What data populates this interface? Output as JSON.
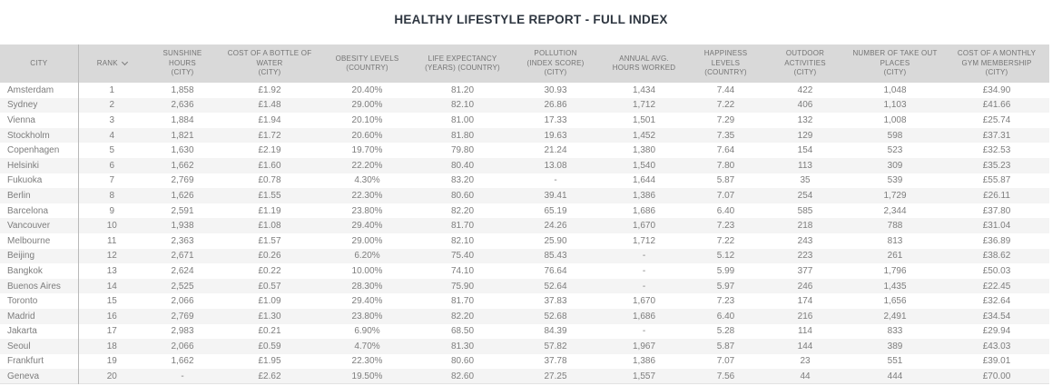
{
  "title": "HEALTHY LIFESTYLE REPORT - FULL INDEX",
  "colors": {
    "header_bg": "#d9d9d9",
    "header_text": "#747474",
    "body_text": "#7d7d7d",
    "stripe": "#f4f4f4",
    "divider": "#b9b9b9",
    "title_text": "#2e3640"
  },
  "table": {
    "columns": [
      {
        "label": "CITY"
      },
      {
        "label": "RANK",
        "sort_icon": "chevron-down"
      },
      {
        "label": "SUNSHINE\nHOURS\n(CITY)"
      },
      {
        "label": "COST OF A BOTTLE OF\nWATER\n(CITY)"
      },
      {
        "label": "OBESITY LEVELS\n(COUNTRY)"
      },
      {
        "label": "LIFE EXPECTANCY\n(YEARS) (COUNTRY)"
      },
      {
        "label": "POLLUTION\n(INDEX SCORE)\n(CITY)"
      },
      {
        "label": "ANNUAL AVG.\nHOURS WORKED"
      },
      {
        "label": "HAPPINESS\nLEVELS\n(COUNTRY)"
      },
      {
        "label": "OUTDOOR\nACTIVITIES\n(CITY)"
      },
      {
        "label": "NUMBER OF TAKE OUT\nPLACES\n(CITY)"
      },
      {
        "label": "COST OF A MONTHLY\nGYM MEMBERSHIP\n(CITY)"
      }
    ],
    "rows": [
      [
        "Amsterdam",
        "1",
        "1,858",
        "£1.92",
        "20.40%",
        "81.20",
        "30.93",
        "1,434",
        "7.44",
        "422",
        "1,048",
        "£34.90"
      ],
      [
        "Sydney",
        "2",
        "2,636",
        "£1.48",
        "29.00%",
        "82.10",
        "26.86",
        "1,712",
        "7.22",
        "406",
        "1,103",
        "£41.66"
      ],
      [
        "Vienna",
        "3",
        "1,884",
        "£1.94",
        "20.10%",
        "81.00",
        "17.33",
        "1,501",
        "7.29",
        "132",
        "1,008",
        "£25.74"
      ],
      [
        "Stockholm",
        "4",
        "1,821",
        "£1.72",
        "20.60%",
        "81.80",
        "19.63",
        "1,452",
        "7.35",
        "129",
        "598",
        "£37.31"
      ],
      [
        "Copenhagen",
        "5",
        "1,630",
        "£2.19",
        "19.70%",
        "79.80",
        "21.24",
        "1,380",
        "7.64",
        "154",
        "523",
        "£32.53"
      ],
      [
        "Helsinki",
        "6",
        "1,662",
        "£1.60",
        "22.20%",
        "80.40",
        "13.08",
        "1,540",
        "7.80",
        "113",
        "309",
        "£35.23"
      ],
      [
        "Fukuoka",
        "7",
        "2,769",
        "£0.78",
        "4.30%",
        "83.20",
        "-",
        "1,644",
        "5.87",
        "35",
        "539",
        "£55.87"
      ],
      [
        "Berlin",
        "8",
        "1,626",
        "£1.55",
        "22.30%",
        "80.60",
        "39.41",
        "1,386",
        "7.07",
        "254",
        "1,729",
        "£26.11"
      ],
      [
        "Barcelona",
        "9",
        "2,591",
        "£1.19",
        "23.80%",
        "82.20",
        "65.19",
        "1,686",
        "6.40",
        "585",
        "2,344",
        "£37.80"
      ],
      [
        "Vancouver",
        "10",
        "1,938",
        "£1.08",
        "29.40%",
        "81.70",
        "24.26",
        "1,670",
        "7.23",
        "218",
        "788",
        "£31.04"
      ],
      [
        "Melbourne",
        "11",
        "2,363",
        "£1.57",
        "29.00%",
        "82.10",
        "25.90",
        "1,712",
        "7.22",
        "243",
        "813",
        "£36.89"
      ],
      [
        "Beijing",
        "12",
        "2,671",
        "£0.26",
        "6.20%",
        "75.40",
        "85.43",
        "-",
        "5.12",
        "223",
        "261",
        "£38.62"
      ],
      [
        "Bangkok",
        "13",
        "2,624",
        "£0.22",
        "10.00%",
        "74.10",
        "76.64",
        "-",
        "5.99",
        "377",
        "1,796",
        "£50.03"
      ],
      [
        "Buenos Aires",
        "14",
        "2,525",
        "£0.57",
        "28.30%",
        "75.90",
        "52.64",
        "-",
        "5.97",
        "246",
        "1,435",
        "£22.45"
      ],
      [
        "Toronto",
        "15",
        "2,066",
        "£1.09",
        "29.40%",
        "81.70",
        "37.83",
        "1,670",
        "7.23",
        "174",
        "1,656",
        "£32.64"
      ],
      [
        "Madrid",
        "16",
        "2,769",
        "£1.30",
        "23.80%",
        "82.20",
        "52.68",
        "1,686",
        "6.40",
        "216",
        "2,491",
        "£34.54"
      ],
      [
        "Jakarta",
        "17",
        "2,983",
        "£0.21",
        "6.90%",
        "68.50",
        "84.39",
        "-",
        "5.28",
        "114",
        "833",
        "£29.94"
      ],
      [
        "Seoul",
        "18",
        "2,066",
        "£0.59",
        "4.70%",
        "81.30",
        "57.82",
        "1,967",
        "5.87",
        "144",
        "389",
        "£43.03"
      ],
      [
        "Frankfurt",
        "19",
        "1,662",
        "£1.95",
        "22.30%",
        "80.60",
        "37.78",
        "1,386",
        "7.07",
        "23",
        "551",
        "£39.01"
      ],
      [
        "Geneva",
        "20",
        "-",
        "£2.62",
        "19.50%",
        "82.60",
        "27.25",
        "1,557",
        "7.56",
        "44",
        "444",
        "£70.00"
      ]
    ]
  }
}
